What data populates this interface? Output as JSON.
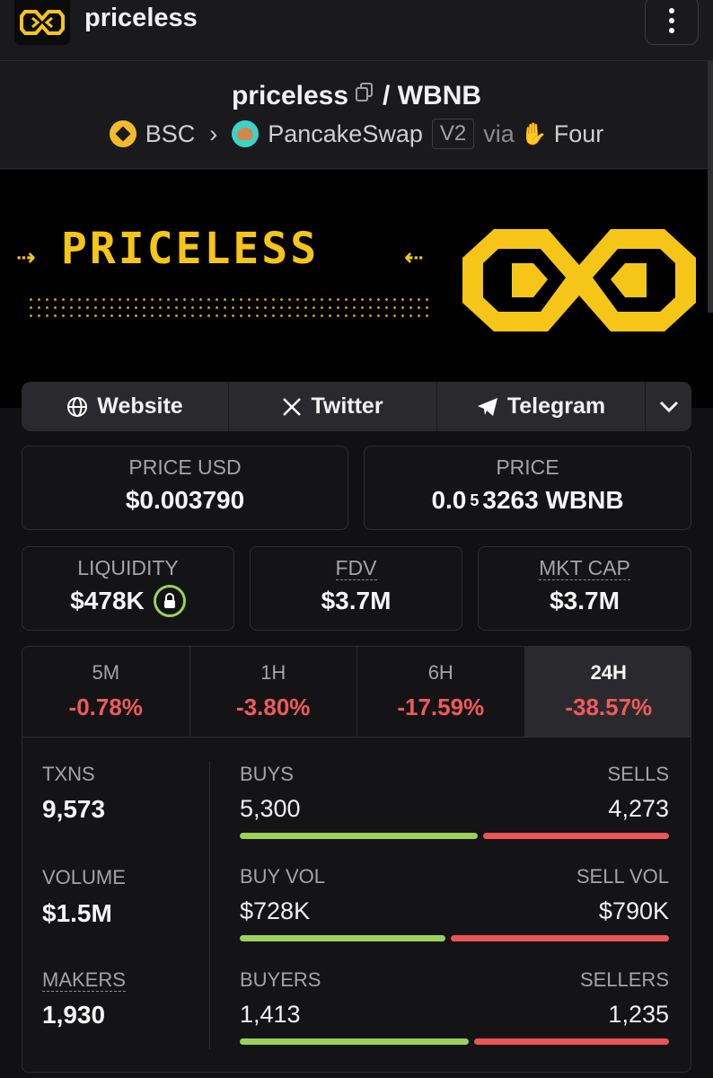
{
  "header": {
    "token_name": "priceless"
  },
  "pair": {
    "base": "priceless",
    "separator": "/",
    "quote": "WBNB",
    "chain": "BSC",
    "dex": "PancakeSwap",
    "version": "V2",
    "via_label": "via",
    "launchpad": "Four"
  },
  "banner": {
    "wordmark": "PRICELESS"
  },
  "links": [
    {
      "label": "Website",
      "icon": "globe-icon"
    },
    {
      "label": "Twitter",
      "icon": "x-icon"
    },
    {
      "label": "Telegram",
      "icon": "telegram-icon"
    }
  ],
  "stats": {
    "price_usd": {
      "label": "PRICE USD",
      "value": "$0.003790"
    },
    "price_native": {
      "label": "PRICE",
      "prefix": "0.0",
      "zeros": "5",
      "digits": "3263",
      "unit": "WBNB"
    },
    "liquidity": {
      "label": "LIQUIDITY",
      "value": "$478K"
    },
    "fdv": {
      "label": "FDV",
      "value": "$3.7M"
    },
    "mkt_cap": {
      "label": "MKT CAP",
      "value": "$3.7M"
    }
  },
  "timeframes": [
    {
      "label": "5M",
      "change": "-0.78%"
    },
    {
      "label": "1H",
      "change": "-3.80%"
    },
    {
      "label": "6H",
      "change": "-17.59%"
    },
    {
      "label": "24H",
      "change": "-38.57%",
      "active": true
    }
  ],
  "activity": {
    "txns": {
      "label": "TXNS",
      "value": "9,573"
    },
    "volume": {
      "label": "VOLUME",
      "value": "$1.5M"
    },
    "makers": {
      "label": "MAKERS",
      "value": "1,930"
    },
    "buys": {
      "label": "BUYS",
      "value": "5,300"
    },
    "sells": {
      "label": "SELLS",
      "value": "4,273"
    },
    "buy_vol": {
      "label": "BUY VOL",
      "value": "$728K"
    },
    "sell_vol": {
      "label": "SELL VOL",
      "value": "$790K"
    },
    "buyers": {
      "label": "BUYERS",
      "value": "1,413"
    },
    "sellers": {
      "label": "SELLERS",
      "value": "1,235"
    },
    "buy_ratio": {
      "txns": 0.554,
      "volume": 0.48,
      "makers": 0.534
    }
  },
  "colors": {
    "accent": "#f5c518",
    "positive": "#9bd159",
    "negative": "#ea5555"
  }
}
